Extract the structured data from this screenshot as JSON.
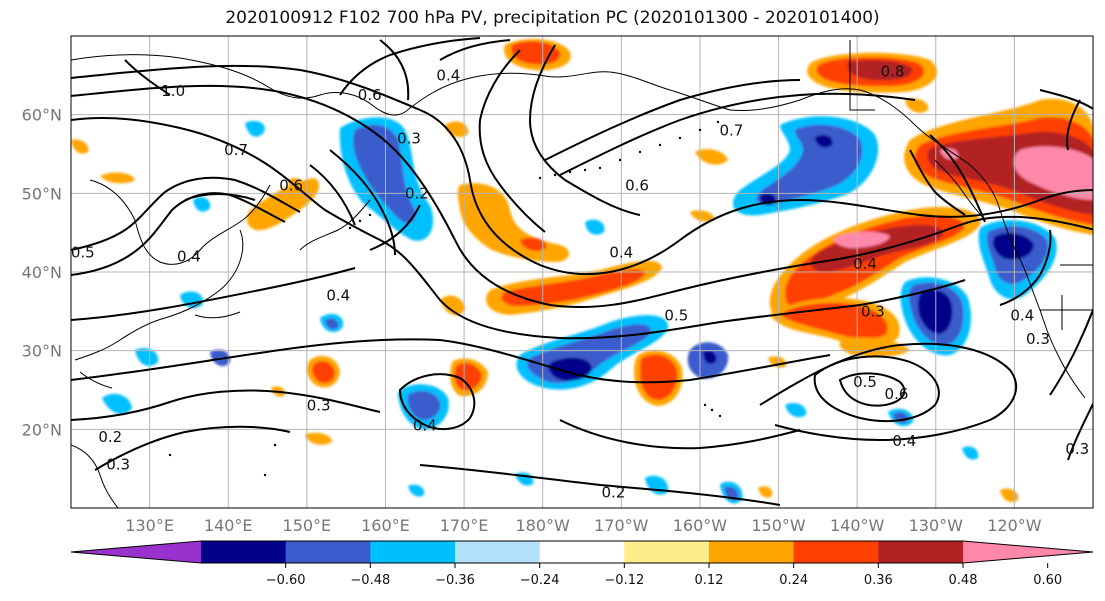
{
  "title": "2020100912 F102 700 hPa PV, precipitation PC (2020101300 - 2020101400)",
  "latitude_labels": [
    {
      "text": "60°N",
      "lat": 60
    },
    {
      "text": "50°N",
      "lat": 50
    },
    {
      "text": "40°N",
      "lat": 40
    },
    {
      "text": "30°N",
      "lat": 30
    },
    {
      "text": "20°N",
      "lat": 20
    }
  ],
  "longitude_labels": [
    {
      "text": "130°E",
      "lon": 130
    },
    {
      "text": "140°E",
      "lon": 140
    },
    {
      "text": "150°E",
      "lon": 150
    },
    {
      "text": "160°E",
      "lon": 160
    },
    {
      "text": "170°E",
      "lon": 170
    },
    {
      "text": "180°W",
      "lon": 180
    },
    {
      "text": "170°W",
      "lon": 190
    },
    {
      "text": "160°W",
      "lon": 200
    },
    {
      "text": "150°W",
      "lon": 210
    },
    {
      "text": "140°W",
      "lon": 220
    },
    {
      "text": "130°W",
      "lon": 230
    },
    {
      "text": "120°W",
      "lon": 240
    }
  ],
  "map_extent": {
    "lon_min": 120,
    "lon_max": 250,
    "lat_min": 10,
    "lat_max": 70
  },
  "colorbar": {
    "bins": [
      {
        "color": "#9932cc"
      },
      {
        "color": "#00008b"
      },
      {
        "color": "#3a5bcc"
      },
      {
        "color": "#00bfff"
      },
      {
        "color": "#b0e0fa"
      },
      {
        "color": "#ffffff"
      },
      {
        "color": "#ffec8b"
      },
      {
        "color": "#ffa500"
      },
      {
        "color": "#ff4000"
      },
      {
        "color": "#b22222"
      },
      {
        "color": "#ff88aa"
      }
    ],
    "ticks": [
      "−0.60",
      "−0.48",
      "−0.36",
      "−0.24",
      "−0.12",
      "0.12",
      "0.24",
      "0.36",
      "0.48",
      "0.60"
    ]
  },
  "contour_labels": [
    {
      "text": "1.0",
      "lon": 133,
      "lat": 63
    },
    {
      "text": "0.6",
      "lon": 158,
      "lat": 62.5
    },
    {
      "text": "0.4",
      "lon": 168,
      "lat": 65
    },
    {
      "text": "0.7",
      "lon": 141,
      "lat": 55.5
    },
    {
      "text": "0.7",
      "lon": 204,
      "lat": 58
    },
    {
      "text": "0.3",
      "lon": 163,
      "lat": 57
    },
    {
      "text": "0.2",
      "lon": 164,
      "lat": 50
    },
    {
      "text": "0.6",
      "lon": 148,
      "lat": 51
    },
    {
      "text": "0.5",
      "lon": 121.5,
      "lat": 42.5
    },
    {
      "text": "0.4",
      "lon": 135,
      "lat": 42
    },
    {
      "text": "0.4",
      "lon": 154,
      "lat": 37
    },
    {
      "text": "0.6",
      "lon": 192,
      "lat": 51
    },
    {
      "text": "0.4",
      "lon": 190,
      "lat": 42.5
    },
    {
      "text": "0.5",
      "lon": 197,
      "lat": 34.5
    },
    {
      "text": "0.8",
      "lon": 224.5,
      "lat": 65.5
    },
    {
      "text": "0.4",
      "lon": 221,
      "lat": 41
    },
    {
      "text": "0.3",
      "lon": 222,
      "lat": 35
    },
    {
      "text": "0.5",
      "lon": 221,
      "lat": 26
    },
    {
      "text": "0.6",
      "lon": 225,
      "lat": 24.5
    },
    {
      "text": "0.4",
      "lon": 226,
      "lat": 18.5
    },
    {
      "text": "0.4",
      "lon": 241,
      "lat": 34.5
    },
    {
      "text": "0.3",
      "lon": 243,
      "lat": 31.5
    },
    {
      "text": "0.3",
      "lon": 151.5,
      "lat": 23
    },
    {
      "text": "0.4",
      "lon": 165,
      "lat": 20.5
    },
    {
      "text": "0.2",
      "lon": 125,
      "lat": 19
    },
    {
      "text": "0.3",
      "lon": 126,
      "lat": 15.5
    },
    {
      "text": "0.2",
      "lon": 189,
      "lat": 12
    },
    {
      "text": "0.3",
      "lon": 248,
      "lat": 17.5
    }
  ]
}
